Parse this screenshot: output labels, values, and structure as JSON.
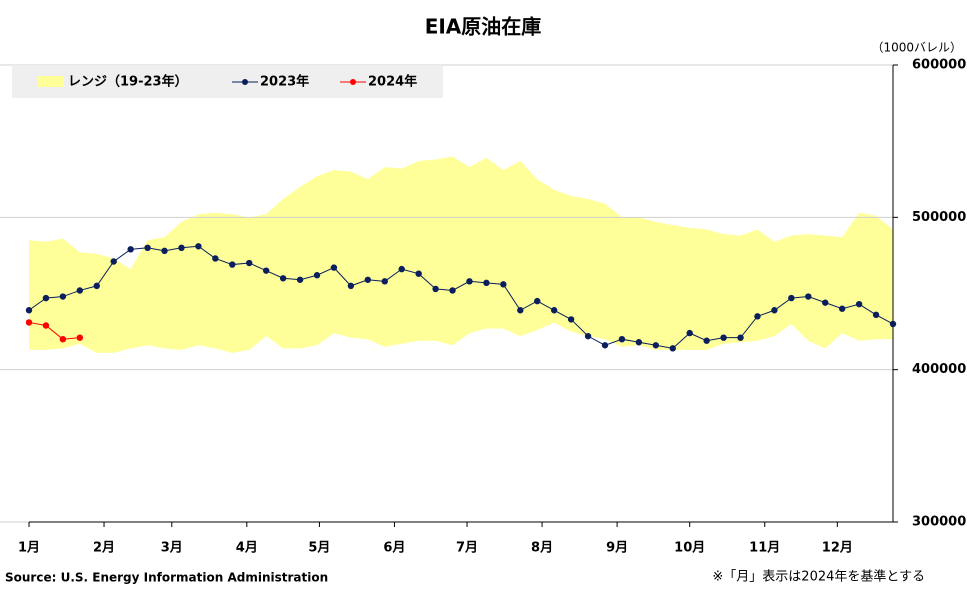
{
  "chart_data": {
    "type": "line",
    "title": "EIA原油在庫",
    "y_axis_label": "（1000バレル）",
    "source": "Source: U.S. Energy Information Administration",
    "note": "※「月」表示は2024年を基準とする",
    "x": [
      1,
      8,
      15,
      22,
      29,
      36,
      43,
      50,
      57,
      64,
      71,
      78,
      85,
      92,
      99,
      106,
      113,
      120,
      127,
      134,
      141,
      148,
      155,
      162,
      169,
      176,
      183,
      190,
      197,
      204,
      211,
      218,
      225,
      232,
      239,
      246,
      253,
      260,
      267,
      274,
      281,
      288,
      295,
      302,
      309,
      316,
      323,
      330,
      337,
      344,
      351,
      358
    ],
    "xlim": [
      1,
      358
    ],
    "xticks": [
      {
        "value": 1,
        "label": "1月"
      },
      {
        "value": 32,
        "label": "2月"
      },
      {
        "value": 60,
        "label": "3月"
      },
      {
        "value": 91,
        "label": "4月"
      },
      {
        "value": 121,
        "label": "5月"
      },
      {
        "value": 152,
        "label": "6月"
      },
      {
        "value": 182,
        "label": "7月"
      },
      {
        "value": 213,
        "label": "8月"
      },
      {
        "value": 244,
        "label": "9月"
      },
      {
        "value": 274,
        "label": "10月"
      },
      {
        "value": 305,
        "label": "11月"
      },
      {
        "value": 335,
        "label": "12月"
      }
    ],
    "ylim": [
      300000,
      600000
    ],
    "yticks": [
      300000,
      400000,
      500000,
      600000
    ],
    "grid": true,
    "legend": "top-left",
    "range": {
      "name": "レンジ（19-23年）",
      "color": "#ffff99",
      "high": [
        485000,
        484000,
        486000,
        477000,
        476000,
        473000,
        466000,
        485000,
        487000,
        497000,
        502000,
        503000,
        502000,
        500000,
        502000,
        512000,
        520000,
        527000,
        531000,
        530000,
        525000,
        533000,
        532000,
        537000,
        538000,
        540000,
        533000,
        539000,
        531000,
        537000,
        525000,
        518000,
        514000,
        512000,
        509000,
        500000,
        500000,
        497000,
        495000,
        493000,
        492000,
        489000,
        488000,
        492000,
        484000,
        488000,
        489000,
        488000,
        487000,
        503000,
        501000,
        492000
      ],
      "low": [
        413000,
        413000,
        414000,
        417000,
        411000,
        411000,
        414000,
        416000,
        414000,
        413000,
        416000,
        414000,
        411000,
        413000,
        422000,
        414000,
        414000,
        416000,
        424000,
        421000,
        420000,
        415000,
        417000,
        419000,
        419000,
        416000,
        424000,
        427000,
        427000,
        422000,
        426000,
        431000,
        425000,
        422000,
        420000,
        415000,
        416000,
        413000,
        413000,
        413000,
        413000,
        417000,
        418000,
        419000,
        422000,
        430000,
        419000,
        414000,
        424000,
        419000,
        420000,
        420000
      ]
    },
    "series": [
      {
        "name": "2023年",
        "color": "#0a1f5c",
        "values": [
          439000,
          447000,
          448000,
          452000,
          455000,
          471000,
          479000,
          480000,
          478000,
          480000,
          481000,
          473000,
          469000,
          470000,
          465000,
          460000,
          459000,
          462000,
          467000,
          455000,
          459000,
          458000,
          466000,
          463000,
          453000,
          452000,
          458000,
          457000,
          456000,
          439000,
          445000,
          439000,
          433000,
          422000,
          416000,
          420000,
          418000,
          416000,
          414000,
          424000,
          419000,
          421000,
          421000,
          435000,
          439000,
          447000,
          448000,
          444000,
          440000,
          443000,
          436000,
          430000
        ]
      },
      {
        "name": "2024年",
        "color": "#ff0000",
        "values": [
          431000,
          429000,
          420000,
          421000,
          null,
          null,
          null,
          null,
          null,
          null,
          null,
          null,
          null,
          null,
          null,
          null,
          null,
          null,
          null,
          null,
          null,
          null,
          null,
          null,
          null,
          null,
          null,
          null,
          null,
          null,
          null,
          null,
          null,
          null,
          null,
          null,
          null,
          null,
          null,
          null,
          null,
          null,
          null,
          null,
          null,
          null,
          null,
          null,
          null,
          null,
          null,
          null
        ]
      }
    ]
  }
}
